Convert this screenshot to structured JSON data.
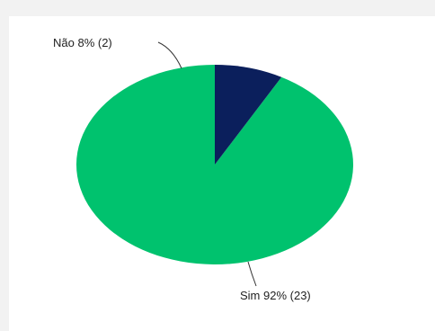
{
  "chart_data": {
    "type": "pie",
    "title": "",
    "slices": [
      {
        "label": "Sim 92% (23)",
        "name": "Sim",
        "percent": 92,
        "count": 23,
        "color": "#00c26e"
      },
      {
        "label": "Não 8% (2)",
        "name": "Não",
        "percent": 8,
        "count": 2,
        "color": "#0b1f5c"
      }
    ],
    "start_angle": "12 o'clock",
    "direction": "counter-clockwise",
    "legend": "none",
    "label_position": "outside with leader lines"
  }
}
